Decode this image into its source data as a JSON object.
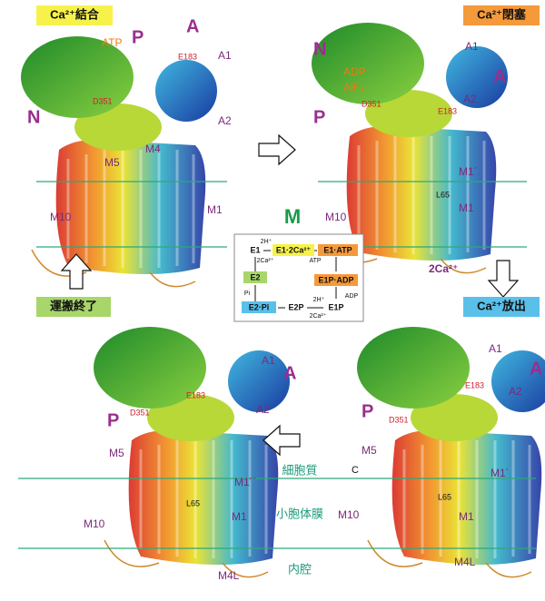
{
  "states": {
    "ca_binding": "Ca²⁺結合",
    "ca_occlusion": "Ca²⁺閉塞",
    "ca_release": "Ca²⁺放出",
    "transport_end": "運搬終了"
  },
  "center_label": "M",
  "membrane_labels": [
    "細胞質",
    "小胞体膜",
    "内腔"
  ],
  "panels": [
    {
      "labels": [
        "ATP",
        "P",
        "A",
        "N",
        "E183",
        "A1",
        "D351",
        "A2",
        "M4",
        "M5",
        "M10",
        "M1"
      ]
    },
    {
      "labels": [
        "N",
        "A1",
        "A",
        "ADP",
        "AlF₄⁻",
        "D351",
        "A2",
        "E183",
        "P",
        "M1´",
        "L65",
        "M10",
        "M1",
        "2Ca²⁺"
      ]
    },
    {
      "labels": [
        "A1",
        "A",
        "E183",
        "A2",
        "P",
        "D351",
        "M5",
        "M1´´",
        "L65",
        "M10",
        "M1",
        "M4L"
      ]
    },
    {
      "labels": [
        "A1",
        "A",
        "A2",
        "E183",
        "P",
        "D351",
        "M5",
        "C",
        "M1´",
        "L65",
        "M10",
        "M1",
        "M4L"
      ]
    }
  ],
  "scheme": {
    "nodes": [
      "E1",
      "E1·2Ca²⁺",
      "E1·ATP",
      "E2",
      "E1P·ADP",
      "E2·Pi",
      "E2P",
      "E1P"
    ],
    "annotations": [
      "2H⁺",
      "2Ca²⁺",
      "ATP",
      "Pi",
      "ADP",
      "2H⁺",
      "2Ca²⁺"
    ]
  }
}
